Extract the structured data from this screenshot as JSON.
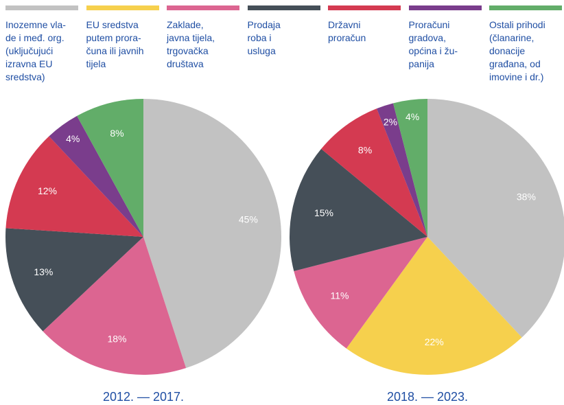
{
  "legend": [
    {
      "name": "Inozemne vla-\nde i međ. org.\n(uključujući\nizravna EU\nsredstva)",
      "color": "#c2c2c2"
    },
    {
      "name": "EU sredstva\nputem prora-\nčuna ili javnih\ntijela",
      "color": "#f6d04d"
    },
    {
      "name": "Zaklade,\njavna tijela,\ntrgovačka\ndruštava",
      "color": "#dc6591"
    },
    {
      "name": "Prodaja\nroba i\nusluga",
      "color": "#454f58"
    },
    {
      "name": "Državni\nproračun",
      "color": "#d43a51"
    },
    {
      "name": "Proračuni\ngradova,\nopćina i žu-\npanija",
      "color": "#7a3d8c"
    },
    {
      "name": "Ostali prihodi\n(članarine,\ndonacije\ngrađana, od\nimovine i dr.)",
      "color": "#62ad69"
    }
  ],
  "chart_data": [
    {
      "type": "pie",
      "title": "2012. — 2017.",
      "values": [
        45,
        null,
        18,
        13,
        12,
        4,
        8
      ],
      "value_labels": [
        "45%",
        null,
        "18%",
        "13%",
        "12%",
        "4%",
        "8%"
      ]
    },
    {
      "type": "pie",
      "title": "2018. — 2023.",
      "values": [
        38,
        22,
        11,
        15,
        8,
        2,
        4
      ],
      "value_labels": [
        "38%",
        "22%",
        "11%",
        "15%",
        "8%",
        "2%",
        "4%"
      ]
    }
  ]
}
